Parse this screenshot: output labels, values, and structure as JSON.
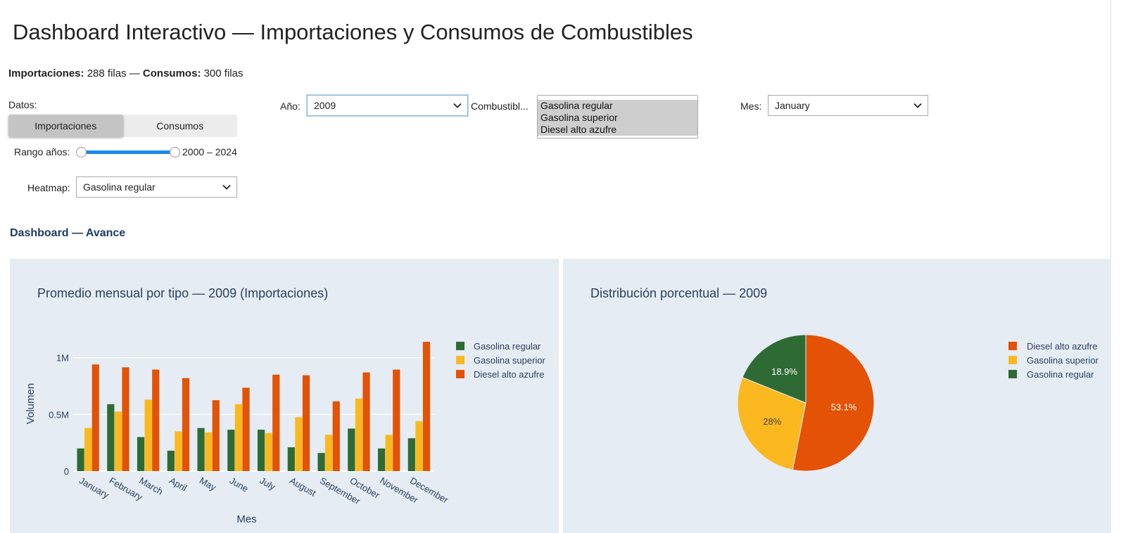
{
  "page": {
    "title": "Dashboard Interactivo — Importaciones y Consumos de Combustibles",
    "rows_info": {
      "imp_label": "Importaciones:",
      "imp_value": "288 filas",
      "sep": "—",
      "con_label": "Consumos:",
      "con_value": "300 filas"
    },
    "subheading": "Dashboard — Avance"
  },
  "controls": {
    "datos_label": "Datos:",
    "toggle": {
      "options": [
        "Importaciones",
        "Consumos"
      ],
      "selected": "Importaciones"
    },
    "rango_label": "Rango años:",
    "rango_range": [
      2000,
      2024
    ],
    "rango_value": "2000 – 2024",
    "heatmap_label": "Heatmap:",
    "heatmap_value": "Gasolina regular",
    "anio_label": "Año:",
    "anio_value": "2009",
    "combustible_label": "Combustibl...",
    "combustible_options": [
      "Gasolina regular",
      "Gasolina superior",
      "Diesel alto azufre"
    ],
    "mes_label": "Mes:",
    "mes_value": "January"
  },
  "colors": {
    "Gasolina regular": "#2e6b34",
    "Gasolina superior": "#fbb81f",
    "Diesel alto azufre": "#e35205",
    "plot_bg": "#e5ecf3",
    "grid": "#ffffff",
    "axis_text": "#2a3f5f"
  },
  "chart_data": [
    {
      "type": "bar",
      "title": "Promedio mensual por tipo — 2009 (Importaciones)",
      "xlabel": "Mes",
      "ylabel": "Volumen",
      "ylim": [
        0,
        1190000
      ],
      "yticks": [
        0,
        500000,
        1000000
      ],
      "ytick_labels": [
        "0",
        "0.5M",
        "1M"
      ],
      "grid": true,
      "legend_position": "top-right",
      "categories": [
        "January",
        "February",
        "March",
        "April",
        "May",
        "June",
        "July",
        "August",
        "September",
        "October",
        "November",
        "December"
      ],
      "series": [
        {
          "name": "Gasolina regular",
          "values": [
            200000,
            590000,
            300000,
            180000,
            380000,
            365000,
            365000,
            210000,
            160000,
            375000,
            200000,
            290000
          ]
        },
        {
          "name": "Gasolina superior",
          "values": [
            380000,
            525000,
            630000,
            350000,
            340000,
            590000,
            335000,
            475000,
            320000,
            640000,
            320000,
            440000
          ]
        },
        {
          "name": "Diesel alto azufre",
          "values": [
            940000,
            915000,
            895000,
            820000,
            625000,
            735000,
            850000,
            845000,
            615000,
            870000,
            895000,
            1140000
          ]
        }
      ]
    },
    {
      "type": "pie",
      "title": "Distribución porcentual — 2009",
      "legend_position": "top-right",
      "labels": [
        "Diesel alto azufre",
        "Gasolina superior",
        "Gasolina regular"
      ],
      "values": [
        53.1,
        28,
        18.9
      ],
      "text_labels": [
        "53.1%",
        "28%",
        "18.9%"
      ]
    }
  ]
}
